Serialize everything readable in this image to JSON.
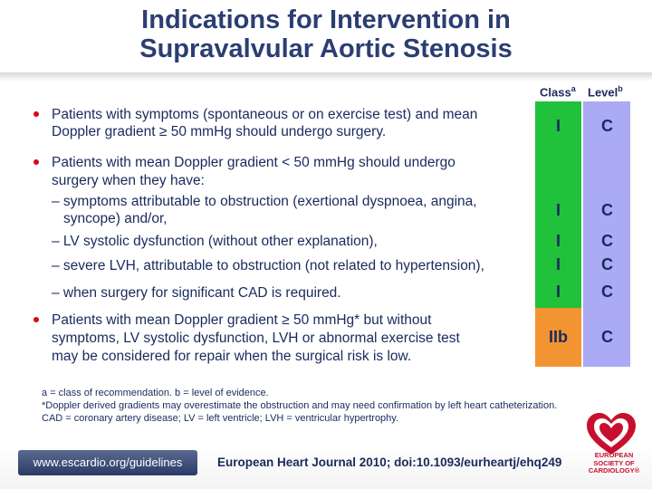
{
  "title": {
    "line1": "Indications for Intervention in",
    "line2": "Supravalvular Aortic Stenosis"
  },
  "table_header": {
    "class": "Class",
    "class_sup": "a",
    "level": "Level",
    "level_sup": "b"
  },
  "rows": [
    {
      "class": "I",
      "level": "C"
    },
    {
      "class": "I",
      "level": "C"
    },
    {
      "class": "I",
      "level": "C"
    },
    {
      "class": "I",
      "level": "C"
    },
    {
      "class": "I",
      "level": "C"
    },
    {
      "class": "IIb",
      "level": "C"
    }
  ],
  "bullets": {
    "b1_l1": "Patients with symptoms (spontaneous or on exercise test) and mean",
    "b1_l2": "Doppler gradient ≥ 50 mmHg should undergo surgery.",
    "b2_l1": "Patients with mean Doppler gradient < 50 mmHg should undergo",
    "b2_l2": "surgery when they have:",
    "s1_l1": "– symptoms attributable to obstruction (exertional dyspnoea, angina,",
    "s1_l2": "syncope) and/or,",
    "s2": "– LV systolic dysfunction (without other explanation),",
    "s3": "– severe LVH, attributable to obstruction (not related to hypertension),",
    "s4": "– when surgery for significant CAD is required.",
    "b3_l1": "Patients with mean Doppler gradient ≥ 50 mmHg* but without",
    "b3_l2": "symptoms, LV systolic dysfunction, LVH or abnormal exercise test",
    "b3_l3": "may be considered for repair when the surgical risk is low."
  },
  "footnotes": {
    "f1": "a = class of recommendation. b = level of evidence.",
    "f2": "*Doppler derived gradients may overestimate the obstruction and may need confirmation by left heart catheterization.",
    "f3": "CAD = coronary artery disease; LV = left ventricle; LVH = ventricular hypertrophy."
  },
  "footer": {
    "url": "www.escardio.org/guidelines",
    "journal": "European Heart Journal 2010; doi:10.1093/eurheartj/ehq249",
    "logo_text_1": "EUROPEAN",
    "logo_text_2": "SOCIETY OF",
    "logo_text_3": "CARDIOLOGY®"
  },
  "colors": {
    "class_green": "#1fc23a",
    "class_orange": "#f39432",
    "level_purple": "#aaaaf5",
    "bullet_red": "#e0001b",
    "text_navy": "#1a2a5c"
  },
  "icons": [
    "esc-heart-logo-icon"
  ]
}
